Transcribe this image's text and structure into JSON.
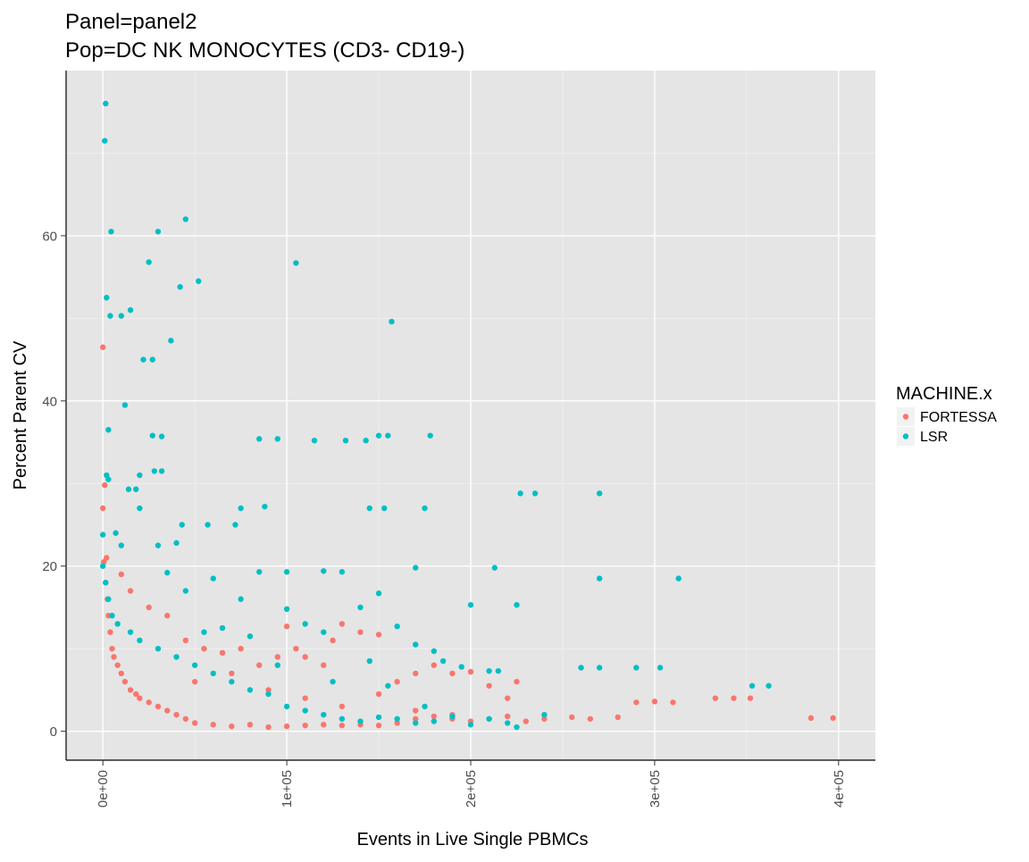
{
  "chart_data": {
    "type": "scatter",
    "title_line1": "Panel=panel2",
    "title_line2": "Pop=DC NK MONOCYTES (CD3- CD19-)",
    "xlabel": "Events in Live Single PBMCs",
    "ylabel": "Percent Parent CV",
    "xlim": [
      -20000,
      420000
    ],
    "ylim": [
      -3.5,
      80
    ],
    "x_ticks": [
      0,
      100000,
      200000,
      300000,
      400000
    ],
    "x_tick_labels": [
      "0e+00",
      "1e+05",
      "2e+05",
      "3e+05",
      "4e+05"
    ],
    "y_ticks": [
      0,
      20,
      40,
      60
    ],
    "y_tick_labels": [
      "0",
      "20",
      "40",
      "60"
    ],
    "grid": true,
    "legend": {
      "title": "MACHINE.x",
      "position": "right",
      "entries": [
        {
          "name": "FORTESSA",
          "color": "#F8766D"
        },
        {
          "name": "LSR",
          "color": "#00BFC4"
        }
      ]
    },
    "series": [
      {
        "name": "FORTESSA",
        "color": "#F8766D",
        "points": [
          [
            0,
            46.5
          ],
          [
            1000,
            29.8
          ],
          [
            0,
            27
          ],
          [
            2000,
            21
          ],
          [
            500,
            20.5
          ],
          [
            1500,
            18
          ],
          [
            2500,
            16
          ],
          [
            3000,
            14
          ],
          [
            4000,
            12
          ],
          [
            5000,
            10
          ],
          [
            6000,
            9
          ],
          [
            8000,
            8
          ],
          [
            10000,
            7
          ],
          [
            12000,
            6
          ],
          [
            15000,
            5
          ],
          [
            18000,
            4.5
          ],
          [
            20000,
            4
          ],
          [
            25000,
            3.5
          ],
          [
            30000,
            3
          ],
          [
            35000,
            2.5
          ],
          [
            40000,
            2
          ],
          [
            45000,
            1.5
          ],
          [
            50000,
            1
          ],
          [
            60000,
            0.8
          ],
          [
            70000,
            0.6
          ],
          [
            80000,
            0.8
          ],
          [
            90000,
            0.5
          ],
          [
            100000,
            0.6
          ],
          [
            110000,
            0.7
          ],
          [
            120000,
            0.8
          ],
          [
            130000,
            0.7
          ],
          [
            140000,
            0.8
          ],
          [
            150000,
            0.7
          ],
          [
            160000,
            1
          ],
          [
            170000,
            1.5
          ],
          [
            180000,
            1.8
          ],
          [
            190000,
            1.5
          ],
          [
            200000,
            1.2
          ],
          [
            210000,
            1.5
          ],
          [
            220000,
            1.8
          ],
          [
            230000,
            1.2
          ],
          [
            240000,
            1.5
          ],
          [
            255000,
            1.7
          ],
          [
            265000,
            1.5
          ],
          [
            280000,
            1.7
          ],
          [
            290000,
            3.5
          ],
          [
            300000,
            3.6
          ],
          [
            310000,
            3.5
          ],
          [
            333000,
            4
          ],
          [
            343000,
            4
          ],
          [
            352000,
            4
          ],
          [
            385000,
            1.6
          ],
          [
            397000,
            1.6
          ],
          [
            45000,
            11
          ],
          [
            55000,
            10
          ],
          [
            65000,
            9.5
          ],
          [
            75000,
            10
          ],
          [
            85000,
            8
          ],
          [
            95000,
            9
          ],
          [
            100000,
            12.7
          ],
          [
            105000,
            10
          ],
          [
            110000,
            9
          ],
          [
            120000,
            8
          ],
          [
            125000,
            11
          ],
          [
            130000,
            13
          ],
          [
            140000,
            12
          ],
          [
            150000,
            11.7
          ],
          [
            160000,
            6
          ],
          [
            170000,
            7
          ],
          [
            180000,
            8
          ],
          [
            190000,
            7
          ],
          [
            200000,
            7.2
          ],
          [
            210000,
            5.5
          ],
          [
            220000,
            4
          ],
          [
            225000,
            6
          ],
          [
            35000,
            14
          ],
          [
            25000,
            15
          ],
          [
            15000,
            17
          ],
          [
            10000,
            19
          ],
          [
            50000,
            6
          ],
          [
            70000,
            7
          ],
          [
            90000,
            5
          ],
          [
            110000,
            4
          ],
          [
            130000,
            3
          ],
          [
            150000,
            4.5
          ],
          [
            170000,
            2.5
          ],
          [
            190000,
            2
          ]
        ]
      },
      {
        "name": "LSR",
        "color": "#00BFC4",
        "points": [
          [
            1500,
            76
          ],
          [
            1000,
            71.5
          ],
          [
            4500,
            60.5
          ],
          [
            30000,
            60.5
          ],
          [
            45000,
            62
          ],
          [
            25000,
            56.8
          ],
          [
            52000,
            54.5
          ],
          [
            105000,
            56.7
          ],
          [
            42000,
            53.8
          ],
          [
            2000,
            52.5
          ],
          [
            15000,
            51
          ],
          [
            10000,
            50.3
          ],
          [
            4000,
            50.3
          ],
          [
            37000,
            47.3
          ],
          [
            157000,
            49.6
          ],
          [
            22000,
            45
          ],
          [
            27000,
            45
          ],
          [
            12000,
            39.5
          ],
          [
            3000,
            36.5
          ],
          [
            27000,
            35.8
          ],
          [
            32000,
            35.7
          ],
          [
            85000,
            35.4
          ],
          [
            95000,
            35.4
          ],
          [
            115000,
            35.2
          ],
          [
            132000,
            35.2
          ],
          [
            143000,
            35.2
          ],
          [
            150000,
            35.8
          ],
          [
            155000,
            35.8
          ],
          [
            178000,
            35.8
          ],
          [
            2000,
            31
          ],
          [
            3000,
            30.5
          ],
          [
            20000,
            31
          ],
          [
            28000,
            31.5
          ],
          [
            32000,
            31.5
          ],
          [
            14000,
            29.3
          ],
          [
            18000,
            29.3
          ],
          [
            7000,
            24
          ],
          [
            20000,
            27
          ],
          [
            75000,
            27
          ],
          [
            88000,
            27.2
          ],
          [
            145000,
            27
          ],
          [
            153000,
            27
          ],
          [
            175000,
            27
          ],
          [
            43000,
            25
          ],
          [
            57000,
            25
          ],
          [
            72000,
            25
          ],
          [
            227000,
            28.8
          ],
          [
            235000,
            28.8
          ],
          [
            270000,
            28.8
          ],
          [
            0,
            23.8
          ],
          [
            10000,
            22.5
          ],
          [
            30000,
            22.5
          ],
          [
            40000,
            22.8
          ],
          [
            85000,
            19.3
          ],
          [
            100000,
            19.3
          ],
          [
            120000,
            19.4
          ],
          [
            130000,
            19.3
          ],
          [
            170000,
            19.8
          ],
          [
            213000,
            19.8
          ],
          [
            270000,
            18.5
          ],
          [
            313000,
            18.5
          ],
          [
            0,
            20
          ],
          [
            1500,
            18
          ],
          [
            3000,
            16
          ],
          [
            5000,
            14
          ],
          [
            8000,
            13
          ],
          [
            15000,
            12
          ],
          [
            20000,
            11
          ],
          [
            30000,
            10
          ],
          [
            40000,
            9
          ],
          [
            50000,
            8
          ],
          [
            60000,
            7
          ],
          [
            70000,
            6
          ],
          [
            80000,
            5
          ],
          [
            90000,
            4.5
          ],
          [
            100000,
            3
          ],
          [
            110000,
            2.5
          ],
          [
            120000,
            2
          ],
          [
            130000,
            1.5
          ],
          [
            140000,
            1.2
          ],
          [
            150000,
            1.7
          ],
          [
            160000,
            1.5
          ],
          [
            170000,
            1
          ],
          [
            180000,
            1.2
          ],
          [
            190000,
            1.8
          ],
          [
            200000,
            0.8
          ],
          [
            210000,
            1.5
          ],
          [
            220000,
            1
          ],
          [
            225000,
            0.5
          ],
          [
            240000,
            2
          ],
          [
            200000,
            15.3
          ],
          [
            225000,
            15.3
          ],
          [
            140000,
            15
          ],
          [
            150000,
            16.7
          ],
          [
            160000,
            12.7
          ],
          [
            170000,
            10.5
          ],
          [
            180000,
            9.7
          ],
          [
            185000,
            8.5
          ],
          [
            195000,
            7.8
          ],
          [
            210000,
            7.3
          ],
          [
            215000,
            7.3
          ],
          [
            260000,
            7.7
          ],
          [
            270000,
            7.7
          ],
          [
            290000,
            7.7
          ],
          [
            303000,
            7.7
          ],
          [
            353000,
            5.5
          ],
          [
            362000,
            5.5
          ],
          [
            100000,
            14.8
          ],
          [
            110000,
            13
          ],
          [
            120000,
            12
          ],
          [
            60000,
            18.5
          ],
          [
            75000,
            16
          ],
          [
            45000,
            17
          ],
          [
            35000,
            19.2
          ],
          [
            55000,
            12
          ],
          [
            65000,
            12.5
          ],
          [
            80000,
            11.5
          ],
          [
            95000,
            8
          ],
          [
            125000,
            6
          ],
          [
            145000,
            8.5
          ],
          [
            155000,
            5.5
          ],
          [
            175000,
            3
          ]
        ]
      }
    ]
  }
}
